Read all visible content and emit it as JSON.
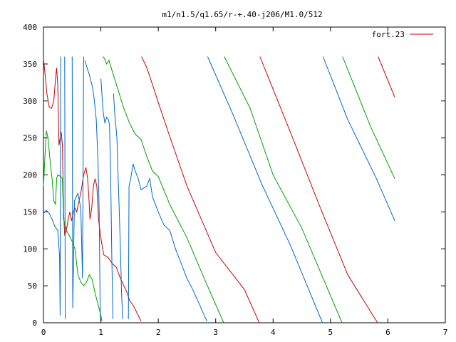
{
  "chart_data": {
    "type": "line",
    "title": "m1/n1.5/q1.65/r-+.40-j206/M1.0/512",
    "xlabel": "",
    "ylabel": "",
    "xlim": [
      0,
      7
    ],
    "ylim": [
      0,
      400
    ],
    "xticks": [
      0,
      1,
      2,
      3,
      4,
      5,
      6,
      7
    ],
    "yticks": [
      0,
      50,
      100,
      150,
      200,
      250,
      300,
      350,
      400
    ],
    "grid": false,
    "legend_position": "top-right",
    "series": [
      {
        "name": "fort.23",
        "color": "#cc0000",
        "points": [
          [
            0.0,
            358
          ],
          [
            0.03,
            335
          ],
          [
            0.06,
            310
          ],
          [
            0.1,
            292
          ],
          [
            0.14,
            290
          ],
          [
            0.18,
            300
          ],
          [
            0.21,
            330
          ],
          [
            0.23,
            345
          ],
          [
            0.25,
            320
          ],
          [
            0.27,
            240
          ],
          [
            0.29,
            250
          ],
          [
            0.31,
            258
          ],
          [
            0.33,
            240
          ],
          [
            0.35,
            150
          ],
          [
            0.37,
            118
          ],
          [
            0.4,
            125
          ],
          [
            0.43,
            140
          ],
          [
            0.46,
            150
          ],
          [
            0.49,
            138
          ],
          [
            0.52,
            150
          ],
          [
            0.55,
            155
          ],
          [
            0.58,
            150
          ],
          [
            0.62,
            165
          ],
          [
            0.66,
            180
          ],
          [
            0.7,
            200
          ],
          [
            0.74,
            210
          ],
          [
            0.77,
            195
          ],
          [
            0.79,
            170
          ],
          [
            0.81,
            140
          ],
          [
            0.84,
            155
          ],
          [
            0.87,
            185
          ],
          [
            0.9,
            195
          ],
          [
            0.93,
            185
          ],
          [
            0.96,
            140
          ],
          [
            0.99,
            120
          ],
          [
            1.02,
            105
          ],
          [
            1.05,
            92
          ],
          [
            1.09,
            90
          ],
          [
            1.13,
            88
          ],
          [
            1.2,
            80
          ],
          [
            1.27,
            75
          ],
          [
            1.33,
            62
          ],
          [
            1.4,
            50
          ],
          [
            1.45,
            42
          ],
          [
            1.5,
            30
          ],
          [
            1.55,
            25
          ],
          [
            1.6,
            18
          ],
          [
            1.65,
            10
          ],
          [
            1.7,
            2
          ],
          [
            null,
            null
          ],
          [
            1.71,
            360
          ],
          [
            1.8,
            345
          ],
          [
            1.9,
            322
          ],
          [
            2.0,
            298
          ],
          [
            2.2,
            252
          ],
          [
            2.5,
            185
          ],
          [
            3.0,
            95
          ],
          [
            3.5,
            45
          ],
          [
            3.76,
            0
          ],
          [
            null,
            null
          ],
          [
            3.77,
            360
          ],
          [
            4.3,
            258
          ],
          [
            4.8,
            160
          ],
          [
            5.3,
            65
          ],
          [
            5.82,
            0
          ],
          [
            null,
            null
          ],
          [
            5.83,
            360
          ],
          [
            6.12,
            305
          ]
        ]
      },
      {
        "name": "",
        "color": "#0066cc",
        "points": [
          [
            0.0,
            148
          ],
          [
            0.05,
            152
          ],
          [
            0.1,
            148
          ],
          [
            0.15,
            140
          ],
          [
            0.2,
            130
          ],
          [
            0.25,
            125
          ],
          [
            0.28,
            90
          ],
          [
            0.29,
            10
          ],
          [
            0.3,
            360
          ],
          [
            null,
            null
          ],
          [
            0.37,
            360
          ],
          [
            0.38,
            5
          ],
          [
            null,
            null
          ],
          [
            0.5,
            360
          ],
          [
            0.51,
            20
          ],
          [
            0.54,
            165
          ],
          [
            0.6,
            175
          ],
          [
            0.65,
            155
          ],
          [
            0.68,
            60
          ],
          [
            0.7,
            360
          ],
          [
            null,
            null
          ],
          [
            0.72,
            355
          ],
          [
            0.76,
            345
          ],
          [
            0.8,
            335
          ],
          [
            0.85,
            320
          ],
          [
            0.88,
            305
          ],
          [
            0.92,
            275
          ],
          [
            0.95,
            220
          ],
          [
            0.97,
            150
          ],
          [
            0.98,
            70
          ],
          [
            0.99,
            5
          ],
          [
            null,
            null
          ],
          [
            1.0,
            330
          ],
          [
            1.04,
            285
          ],
          [
            1.07,
            270
          ],
          [
            1.1,
            278
          ],
          [
            1.13,
            275
          ],
          [
            1.15,
            268
          ],
          [
            1.17,
            200
          ],
          [
            1.19,
            90
          ],
          [
            1.2,
            50
          ],
          [
            1.21,
            5
          ],
          [
            null,
            null
          ],
          [
            1.22,
            310
          ],
          [
            1.24,
            285
          ],
          [
            1.28,
            250
          ],
          [
            1.3,
            200
          ],
          [
            1.32,
            150
          ],
          [
            1.34,
            100
          ],
          [
            1.36,
            40
          ],
          [
            1.38,
            5
          ],
          [
            null,
            null
          ],
          [
            1.48,
            5
          ],
          [
            1.49,
            185
          ],
          [
            1.52,
            195
          ],
          [
            1.56,
            215
          ],
          [
            1.6,
            205
          ],
          [
            1.65,
            195
          ],
          [
            1.7,
            180
          ],
          [
            1.8,
            185
          ],
          [
            1.85,
            195
          ],
          [
            1.9,
            170
          ],
          [
            2.0,
            150
          ],
          [
            2.1,
            132
          ],
          [
            2.2,
            125
          ],
          [
            2.3,
            100
          ],
          [
            2.4,
            80
          ],
          [
            2.5,
            60
          ],
          [
            2.6,
            45
          ],
          [
            2.7,
            28
          ],
          [
            2.8,
            10
          ],
          [
            2.85,
            2
          ],
          [
            null,
            null
          ],
          [
            2.86,
            360
          ],
          [
            3.3,
            282
          ],
          [
            3.8,
            188
          ],
          [
            4.3,
            105
          ],
          [
            4.86,
            0
          ],
          [
            null,
            null
          ],
          [
            4.87,
            360
          ],
          [
            5.3,
            275
          ],
          [
            5.8,
            195
          ],
          [
            6.12,
            138
          ]
        ]
      },
      {
        "name": "",
        "color": "#00a000",
        "points": [
          [
            0.0,
            185
          ],
          [
            0.02,
            215
          ],
          [
            0.05,
            260
          ],
          [
            0.08,
            250
          ],
          [
            0.12,
            215
          ],
          [
            0.15,
            195
          ],
          [
            0.18,
            165
          ],
          [
            0.21,
            160
          ],
          [
            0.23,
            195
          ],
          [
            0.25,
            200
          ],
          [
            0.3,
            198
          ],
          [
            0.33,
            195
          ],
          [
            0.35,
            140
          ],
          [
            0.4,
            125
          ],
          [
            0.45,
            118
          ],
          [
            0.5,
            110
          ],
          [
            0.55,
            100
          ],
          [
            0.6,
            65
          ],
          [
            0.65,
            55
          ],
          [
            0.7,
            50
          ],
          [
            0.75,
            55
          ],
          [
            0.8,
            65
          ],
          [
            0.85,
            58
          ],
          [
            0.9,
            40
          ],
          [
            0.95,
            25
          ],
          [
            1.0,
            10
          ],
          [
            1.02,
            2
          ],
          [
            null,
            null
          ],
          [
            1.03,
            360
          ],
          [
            1.06,
            358
          ],
          [
            1.1,
            350
          ],
          [
            1.14,
            355
          ],
          [
            1.2,
            340
          ],
          [
            1.3,
            315
          ],
          [
            1.4,
            290
          ],
          [
            1.5,
            270
          ],
          [
            1.6,
            255
          ],
          [
            1.7,
            248
          ],
          [
            1.8,
            225
          ],
          [
            1.9,
            205
          ],
          [
            2.0,
            198
          ],
          [
            2.2,
            160
          ],
          [
            2.5,
            115
          ],
          [
            2.8,
            60
          ],
          [
            3.14,
            0
          ],
          [
            null,
            null
          ],
          [
            3.15,
            360
          ],
          [
            3.6,
            290
          ],
          [
            4.0,
            200
          ],
          [
            4.5,
            128
          ],
          [
            5.2,
            0
          ],
          [
            null,
            null
          ],
          [
            5.21,
            360
          ],
          [
            5.7,
            265
          ],
          [
            6.12,
            195
          ]
        ]
      }
    ]
  }
}
